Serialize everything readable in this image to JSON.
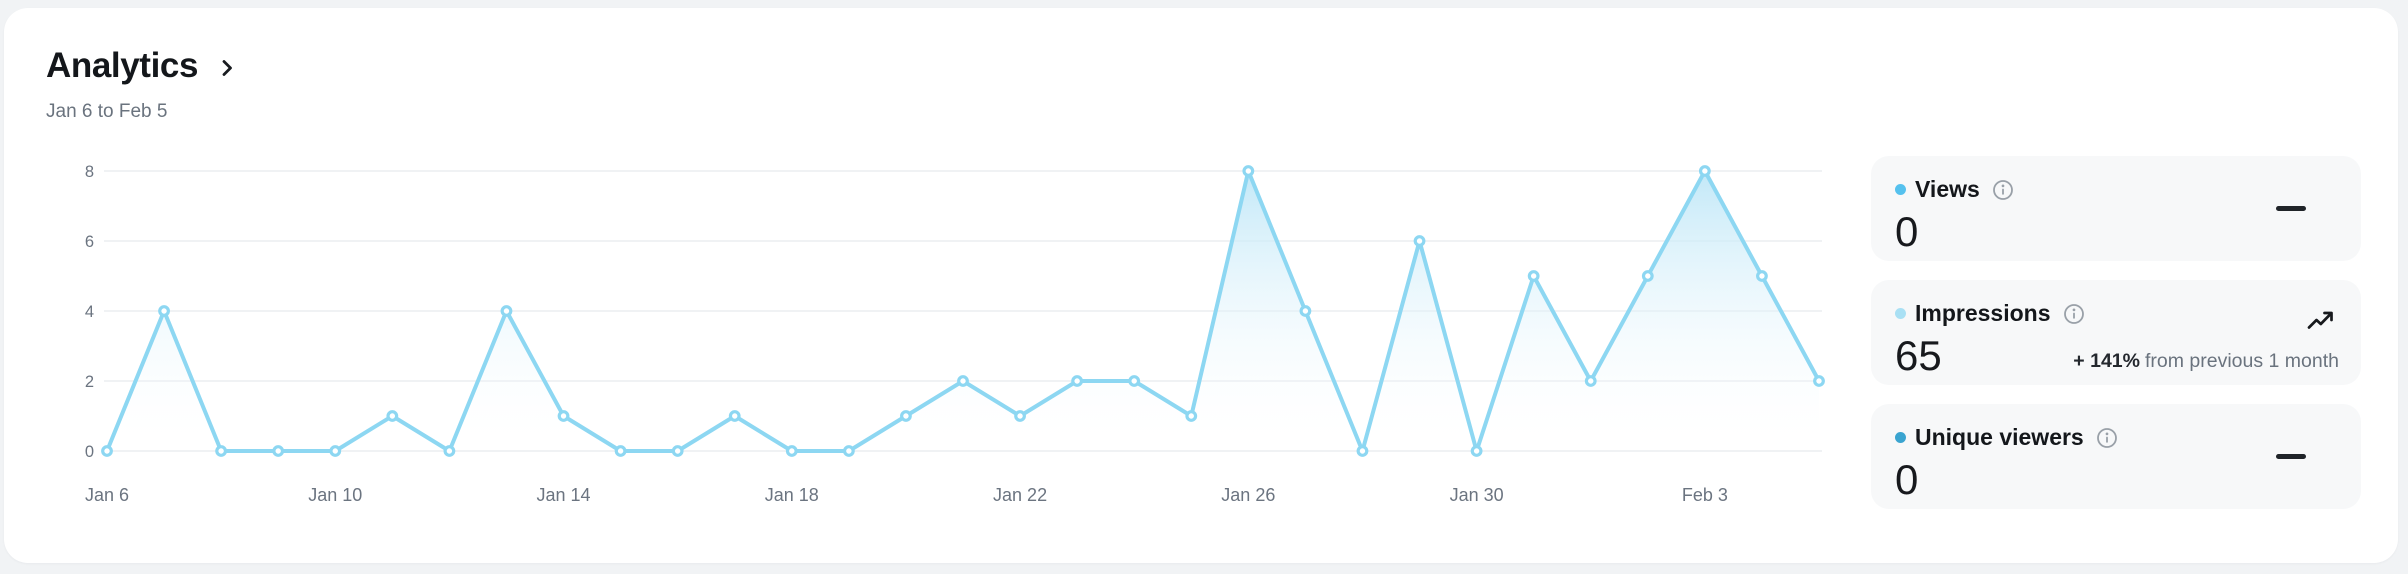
{
  "header": {
    "title": "Analytics",
    "subtitle": "Jan 6 to Feb 5"
  },
  "chart_data": {
    "type": "line",
    "series_name": "Impressions",
    "x": [
      "Jan 6",
      "Jan 7",
      "Jan 8",
      "Jan 9",
      "Jan 10",
      "Jan 11",
      "Jan 12",
      "Jan 13",
      "Jan 14",
      "Jan 15",
      "Jan 16",
      "Jan 17",
      "Jan 18",
      "Jan 19",
      "Jan 20",
      "Jan 21",
      "Jan 22",
      "Jan 23",
      "Jan 24",
      "Jan 25",
      "Jan 26",
      "Jan 27",
      "Jan 28",
      "Jan 29",
      "Jan 30",
      "Jan 31",
      "Feb 1",
      "Feb 2",
      "Feb 3",
      "Feb 4",
      "Feb 5"
    ],
    "values": [
      0,
      4,
      0,
      0,
      0,
      1,
      0,
      4,
      1,
      0,
      0,
      1,
      0,
      0,
      1,
      2,
      1,
      2,
      2,
      1,
      8,
      4,
      0,
      6,
      0,
      5,
      2,
      5,
      8,
      5,
      2
    ],
    "x_tick_labels": [
      "Jan 6",
      "Jan 10",
      "Jan 14",
      "Jan 18",
      "Jan 22",
      "Jan 26",
      "Jan 30",
      "Feb 3"
    ],
    "x_tick_indices": [
      0,
      4,
      8,
      12,
      16,
      20,
      24,
      28
    ],
    "y_ticks": [
      0,
      2,
      4,
      6,
      8
    ],
    "ylim": [
      0,
      8
    ],
    "grid": "horizontal-only",
    "legend": "none",
    "line_color": "#8dd7f2",
    "marker_fill": "#ffffff",
    "fill_top_color": "#bde6f7",
    "grid_color": "#ebedf0",
    "axis_label_color": "#6b7480"
  },
  "stats": {
    "cards": [
      {
        "label": "Views",
        "value": "0",
        "dot_color": "#55c1ee",
        "trend": "flat"
      },
      {
        "label": "Impressions",
        "value": "65",
        "dot_color": "#a9e0f4",
        "trend": "up",
        "delta": "+ 141%",
        "delta_suffix": "from previous 1 month"
      },
      {
        "label": "Unique viewers",
        "value": "0",
        "dot_color": "#3aa4d0",
        "trend": "flat"
      }
    ]
  },
  "colors": {
    "page_background": "#f1f3f5",
    "panel_background": "#ffffff",
    "stat_card_background": "#f7f8f9",
    "title_text": "#14171b",
    "muted_text": "#6a737e"
  }
}
